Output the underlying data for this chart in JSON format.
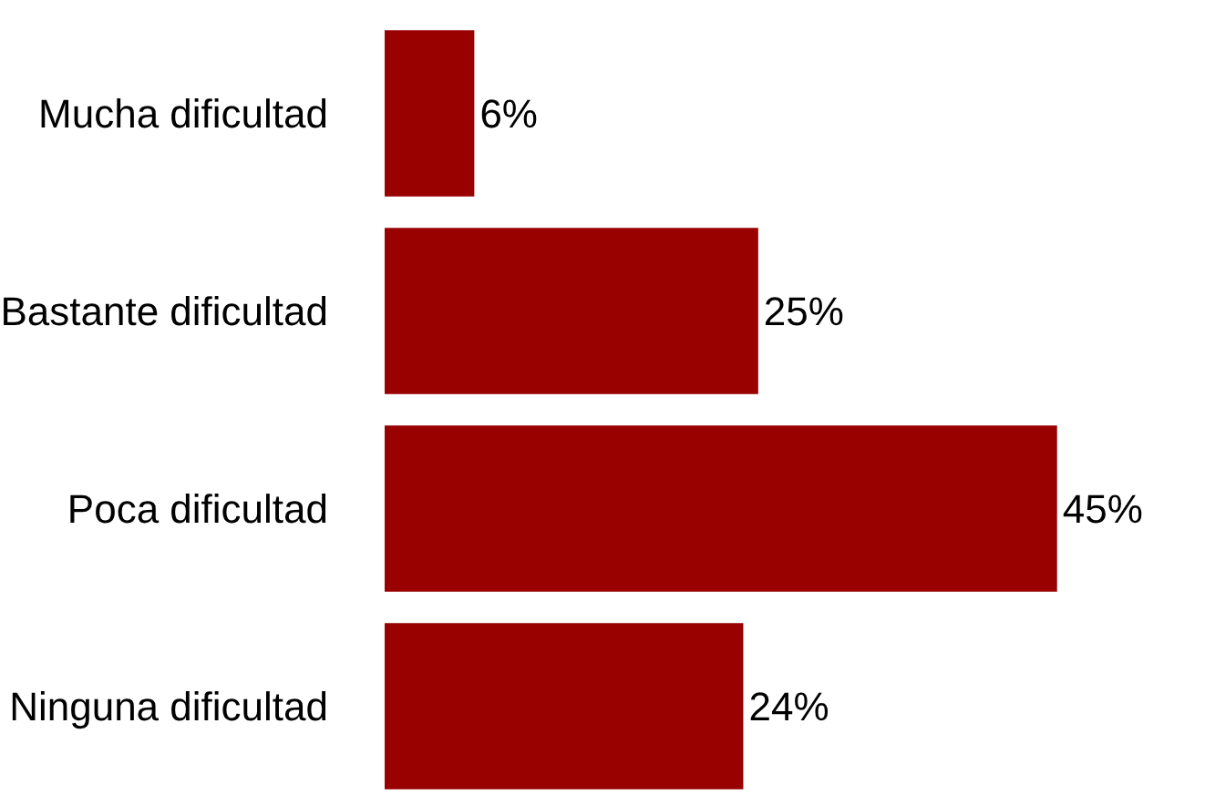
{
  "chart_data": {
    "type": "bar",
    "orientation": "horizontal",
    "categories": [
      "Mucha dificultad",
      "Bastante dificultad",
      "Poca dificultad",
      "Ninguna dificultad"
    ],
    "values": [
      6,
      25,
      45,
      24
    ],
    "value_labels": [
      "6%",
      "25%",
      "45%",
      "24%"
    ],
    "color": "#990000",
    "legend": false
  }
}
